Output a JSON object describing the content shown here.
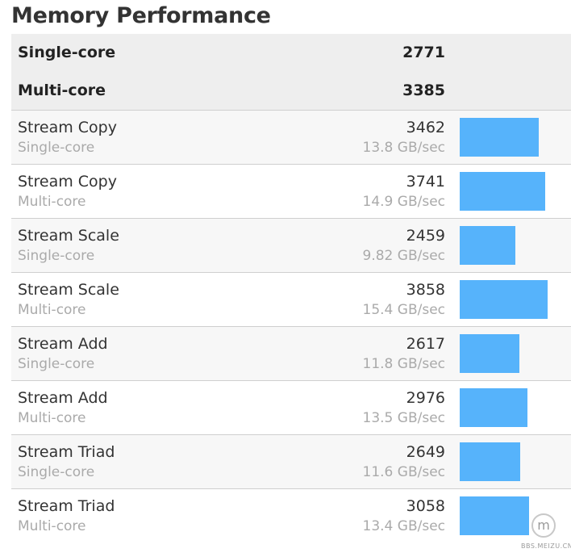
{
  "title": "Memory Performance",
  "summary": [
    {
      "label": "Single-core",
      "value": "2771"
    },
    {
      "label": "Multi-core",
      "value": "3385"
    }
  ],
  "bar_color": "#56b3fb",
  "bar_scale_max": 4000,
  "rows": [
    {
      "name": "Stream Copy",
      "sub": "Single-core",
      "score": "3462",
      "rate": "13.8 GB/sec"
    },
    {
      "name": "Stream Copy",
      "sub": "Multi-core",
      "score": "3741",
      "rate": "14.9 GB/sec"
    },
    {
      "name": "Stream Scale",
      "sub": "Single-core",
      "score": "2459",
      "rate": "9.82 GB/sec"
    },
    {
      "name": "Stream Scale",
      "sub": "Multi-core",
      "score": "3858",
      "rate": "15.4 GB/sec"
    },
    {
      "name": "Stream Add",
      "sub": "Single-core",
      "score": "2617",
      "rate": "11.8 GB/sec"
    },
    {
      "name": "Stream Add",
      "sub": "Multi-core",
      "score": "2976",
      "rate": "13.5 GB/sec"
    },
    {
      "name": "Stream Triad",
      "sub": "Single-core",
      "score": "2649",
      "rate": "11.6 GB/sec"
    },
    {
      "name": "Stream Triad",
      "sub": "Multi-core",
      "score": "3058",
      "rate": "13.4 GB/sec"
    }
  ],
  "watermark": {
    "icon": "meizu-logo-icon",
    "glyph": "m",
    "text": "BBS.MEIZU.CN"
  }
}
